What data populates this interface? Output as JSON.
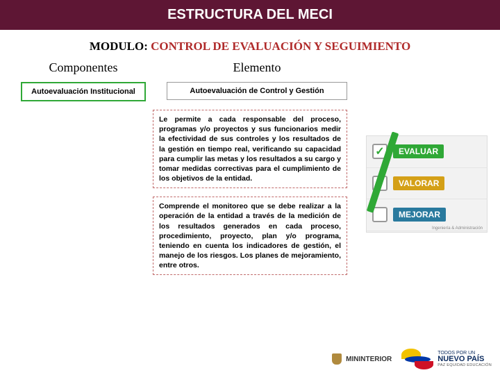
{
  "header": {
    "title": "ESTRUCTURA  DEL MECI"
  },
  "modulo": {
    "label": "MODULO:",
    "value": "CONTROL DE EVALUACIÓN Y SEGUIMIENTO"
  },
  "columns": {
    "left_head": "Componentes",
    "mid_head": "Elemento",
    "left_box": "Autoevaluación Institucional",
    "mid_box": "Autoevaluación de Control y Gestión"
  },
  "paragraphs": {
    "p1": "Le permite a cada responsable del proceso, programas y/o proyectos y sus funcionarios medir la efectividad de sus controles y los resultados de la gestión en tiempo real, verificando su capacidad para cumplir las metas y los resultados a su cargo y tomar medidas correctivas para el cumplimiento de los objetivos de la entidad.",
    "p2": "Comprende el monitoreo que se debe realizar a la operación de la entidad a través de la medición de los resultados generados en cada proceso, procedimiento, proyecto, plan y/o programa, teniendo en cuenta los indicadores de gestión, el manejo de los riesgos. Los planes de mejoramiento, entre otros."
  },
  "side_image": {
    "items": [
      {
        "label": "EVALUAR",
        "color": "#2fa836",
        "checked": true
      },
      {
        "label": "VALORAR",
        "color": "#d4a017",
        "checked": false
      },
      {
        "label": "MEJORAR",
        "color": "#2a7a9e",
        "checked": false
      }
    ],
    "credit": "Ingeniería & Administración"
  },
  "footer": {
    "ministry": "MININTERIOR",
    "slogan_small": "TODOS POR UN",
    "slogan_big": "NUEVO PAÍS",
    "slogan_sub": "PAZ  EQUIDAD  EDUCACIÓN"
  },
  "colors": {
    "header_bg": "#5e1634",
    "accent_red": "#b02a2a",
    "green": "#2fa836"
  }
}
